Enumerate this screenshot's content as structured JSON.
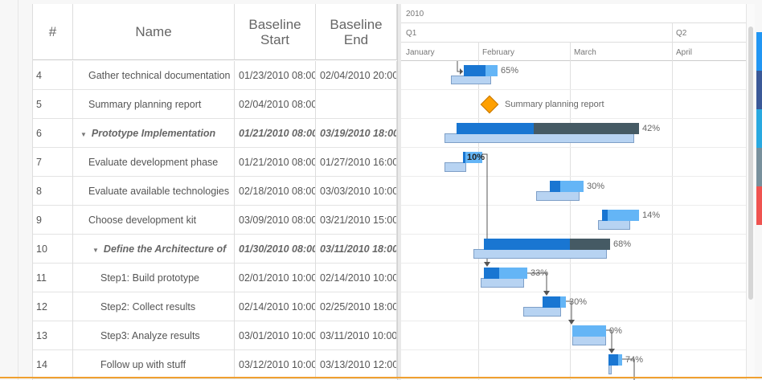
{
  "grid": {
    "columns": {
      "num": "#",
      "name": "Name",
      "baseline_start": "Baseline Start",
      "baseline_end": "Baseline End"
    },
    "rows": [
      {
        "num": "4",
        "name": "Gather technical documentation",
        "baseline_start": "01/23/2010 08:00",
        "baseline_end": "02/04/2010 20:00",
        "bold": false,
        "indent": 1
      },
      {
        "num": "5",
        "name": "Summary planning report",
        "baseline_start": "02/04/2010 08:00",
        "baseline_end": "",
        "bold": false,
        "indent": 1
      },
      {
        "num": "6",
        "name": "Prototype Implementation",
        "baseline_start": "01/21/2010 08:00",
        "baseline_end": "03/19/2010 18:00",
        "bold": true,
        "indent": 1
      },
      {
        "num": "7",
        "name": "Evaluate development phase",
        "baseline_start": "01/21/2010 08:00",
        "baseline_end": "01/27/2010 16:00",
        "bold": false,
        "indent": 1
      },
      {
        "num": "8",
        "name": "Evaluate available technologies",
        "baseline_start": "02/18/2010 08:00",
        "baseline_end": "03/03/2010 10:00",
        "bold": false,
        "indent": 1
      },
      {
        "num": "9",
        "name": "Choose development kit",
        "baseline_start": "03/09/2010 08:00",
        "baseline_end": "03/21/2010 15:00",
        "bold": false,
        "indent": 1
      },
      {
        "num": "10",
        "name": "Define the Architecture of",
        "baseline_start": "01/30/2010 08:00",
        "baseline_end": "03/11/2010 18:00",
        "bold": true,
        "indent": 2
      },
      {
        "num": "11",
        "name": "Step1: Build prototype",
        "baseline_start": "02/01/2010 10:00",
        "baseline_end": "02/14/2010 10:00",
        "bold": false,
        "indent": 2
      },
      {
        "num": "12",
        "name": "Step2: Collect results",
        "baseline_start": "02/14/2010 10:00",
        "baseline_end": "02/25/2010 18:00",
        "bold": false,
        "indent": 2
      },
      {
        "num": "13",
        "name": "Step3: Analyze results",
        "baseline_start": "03/01/2010 10:00",
        "baseline_end": "03/11/2010 10:00",
        "bold": false,
        "indent": 2
      },
      {
        "num": "14",
        "name": "Follow up with stuff",
        "baseline_start": "03/12/2010 10:00",
        "baseline_end": "03/13/2010 12:00",
        "bold": false,
        "indent": 2
      }
    ]
  },
  "timeline": {
    "year": "2010",
    "quarters": [
      "Q1",
      "Q2"
    ],
    "months": [
      "January",
      "February",
      "March",
      "April"
    ],
    "milestone_label": "Summary planning report",
    "progress_labels": [
      "65%",
      "42%",
      "10%",
      "30%",
      "14%",
      "68%",
      "33%",
      "30%",
      "0%",
      "74%"
    ]
  },
  "colors": {
    "progress": "#1976d2",
    "planned": "#64b5f6",
    "group": "#455a64",
    "baseline": "#b7d3f2",
    "milestone": "#ffa000",
    "side_tabs": [
      "#2196f3",
      "#3b5998",
      "#29a9e0",
      "#78909c",
      "#ef5350"
    ]
  }
}
